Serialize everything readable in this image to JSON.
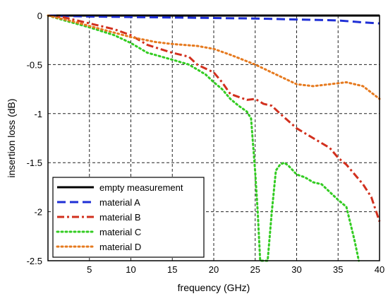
{
  "chart_data": {
    "type": "line",
    "xlabel": "frequency (GHz)",
    "ylabel": "insertion loss (dB)",
    "xlim": [
      0,
      40
    ],
    "ylim": [
      -2.5,
      0
    ],
    "grid": true,
    "legend_position": "bottom-left",
    "x_ticks": [
      5,
      10,
      15,
      20,
      25,
      30,
      35,
      40
    ],
    "x_tick_labels": [
      "5",
      "10",
      "15",
      "20",
      "25",
      "30",
      "35",
      "40"
    ],
    "y_ticks": [
      0,
      -0.5,
      -1,
      -1.5,
      -2,
      -2.5
    ],
    "y_tick_labels": [
      "0",
      "-0.5",
      "-1",
      "-1.5",
      "-2",
      "-2.5"
    ],
    "series": [
      {
        "name": "empty measurement",
        "color": "#000000",
        "style": "solid",
        "x": [
          0,
          5,
          10,
          15,
          20,
          25,
          30,
          35,
          40
        ],
        "y": [
          0,
          0,
          0,
          0,
          0,
          0,
          0,
          0,
          0
        ]
      },
      {
        "name": "material A",
        "color": "#1f2fd6",
        "style": "dashed",
        "x": [
          0,
          5,
          10,
          15,
          20,
          25,
          30,
          35,
          38,
          40
        ],
        "y": [
          0,
          -0.01,
          -0.015,
          -0.02,
          -0.025,
          -0.03,
          -0.04,
          -0.05,
          -0.07,
          -0.08
        ]
      },
      {
        "name": "material B",
        "color": "#d2301e",
        "style": "dashdot",
        "x": [
          0,
          2,
          5,
          8,
          10,
          12,
          15,
          17,
          18,
          20,
          21,
          22,
          24,
          25,
          26,
          27,
          28,
          30,
          32,
          34,
          35,
          36,
          37,
          38,
          39,
          40
        ],
        "y": [
          0,
          -0.02,
          -0.08,
          -0.14,
          -0.2,
          -0.3,
          -0.38,
          -0.42,
          -0.5,
          -0.58,
          -0.68,
          -0.8,
          -0.86,
          -0.85,
          -0.9,
          -0.92,
          -1.0,
          -1.15,
          -1.25,
          -1.35,
          -1.45,
          -1.52,
          -1.62,
          -1.72,
          -1.85,
          -2.1
        ]
      },
      {
        "name": "material C",
        "color": "#33cc22",
        "style": "dotted",
        "x": [
          0,
          2,
          5,
          8,
          10,
          12,
          15,
          17,
          18,
          19,
          20,
          21,
          22,
          23,
          24,
          24.5,
          25,
          25.3,
          25.6,
          26,
          26.5,
          27,
          27.5,
          28,
          28.5,
          29,
          30,
          31,
          32,
          33,
          34,
          35,
          36,
          37,
          37.5
        ],
        "y": [
          0,
          -0.05,
          -0.12,
          -0.2,
          -0.28,
          -0.38,
          -0.45,
          -0.5,
          -0.55,
          -0.6,
          -0.68,
          -0.75,
          -0.85,
          -0.92,
          -0.98,
          -1.05,
          -1.6,
          -2.0,
          -2.5,
          -2.5,
          -2.5,
          -2.0,
          -1.58,
          -1.52,
          -1.5,
          -1.53,
          -1.62,
          -1.65,
          -1.7,
          -1.72,
          -1.8,
          -1.88,
          -1.95,
          -2.3,
          -2.5
        ]
      },
      {
        "name": "material D",
        "color": "#e67a1f",
        "style": "dotted",
        "x": [
          0,
          3,
          6,
          10,
          13,
          15,
          18,
          20,
          22,
          25,
          28,
          30,
          32,
          34,
          36,
          38,
          40
        ],
        "y": [
          0,
          -0.06,
          -0.13,
          -0.22,
          -0.27,
          -0.29,
          -0.31,
          -0.34,
          -0.4,
          -0.5,
          -0.62,
          -0.7,
          -0.72,
          -0.7,
          -0.68,
          -0.72,
          -0.85
        ]
      }
    ]
  }
}
